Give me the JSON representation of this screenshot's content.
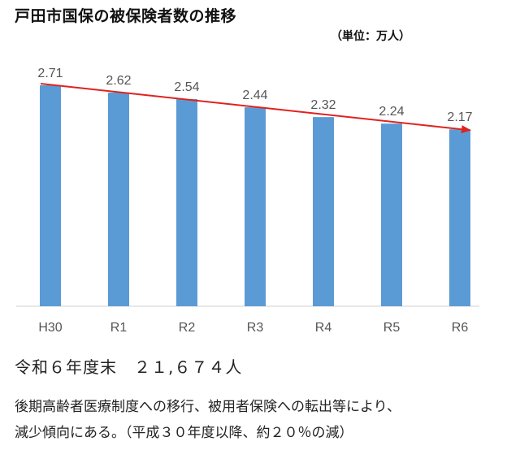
{
  "title": "戸田市国保の被保険者数の推移",
  "unit_label": "（単位：万人）",
  "summary": "令和６年度末　２１,６７４人",
  "note_lines": [
    "後期高齢者医療制度への移行、被用者保険への転出等により、",
    "減少傾向にある。（平成３０年度以降、約２０％の減）"
  ],
  "colors": {
    "bar": "#5b9bd5",
    "trend": "#e0221e",
    "axis": "#d0d0d0",
    "label": "#555555"
  },
  "chart_data": {
    "type": "bar",
    "categories": [
      "H30",
      "R1",
      "R2",
      "R3",
      "R4",
      "R5",
      "R6"
    ],
    "values": [
      2.71,
      2.62,
      2.54,
      2.44,
      2.32,
      2.24,
      2.17
    ],
    "value_labels": [
      "2.71",
      "2.62",
      "2.54",
      "2.44",
      "2.32",
      "2.24",
      "2.17"
    ],
    "ylim": [
      0,
      2.71
    ],
    "grid": false,
    "trend_arrow": {
      "from_category": "H30",
      "to_category": "R6"
    }
  }
}
